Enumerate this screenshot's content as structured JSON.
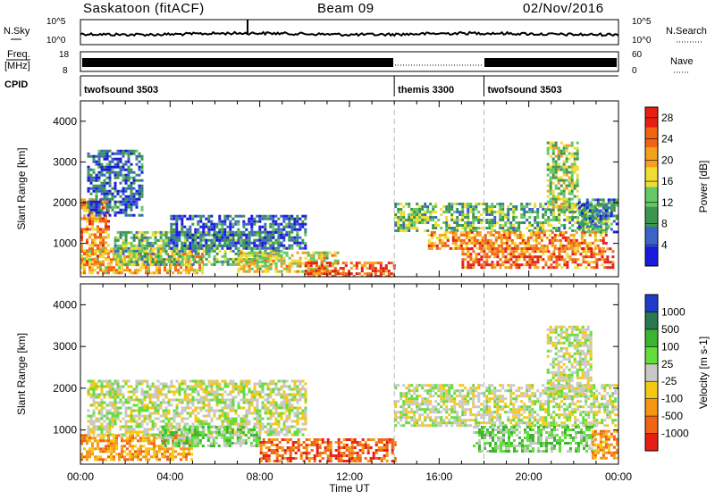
{
  "header": {
    "site": "Saskatoon (fitACF)",
    "beam": "Beam 09",
    "date": "02/Nov/2016"
  },
  "top_panels": {
    "nsky_label": "N.Sky",
    "nsearch_label": "N.Search",
    "nsky_ticks": [
      "10^5",
      "10^0"
    ],
    "nsearch_ticks": [
      "10^5",
      "10^0"
    ],
    "freq_label_1": "Freq.",
    "freq_label_2": "[MHz]",
    "freq_ticks": [
      "18",
      "8"
    ],
    "nave_label": "Nave",
    "nave_ticks": [
      "60",
      "0"
    ],
    "cpid_label": "CPID",
    "cpid_segments": [
      {
        "name": "twofsound 3503",
        "start": 0,
        "end": 14
      },
      {
        "name": "themis 3300",
        "start": 14,
        "end": 18
      },
      {
        "name": "twofsound 3503",
        "start": 18,
        "end": 24
      }
    ]
  },
  "chart_data": [
    {
      "type": "heatmap",
      "panel": "power",
      "ylabel": "Slant Range [km]",
      "xlabel": "Time UT",
      "ylim": [
        180,
        4500
      ],
      "xlim": [
        0,
        24
      ],
      "yticks": [
        1000,
        2000,
        3000,
        4000
      ],
      "xtick_labels": [
        "00:00",
        "04:00",
        "08:00",
        "12:00",
        "16:00",
        "20:00",
        "00:00"
      ],
      "colorbar_label": "Power [dB]",
      "colorbar_ticks": [
        4,
        8,
        12,
        16,
        20,
        24,
        28
      ],
      "colorbar_range": [
        0,
        30
      ],
      "colors": [
        "#1a1adc",
        "#3c64c8",
        "#3c9650",
        "#64c864",
        "#f0dc32",
        "#f5a01e",
        "#f06414",
        "#e61e14"
      ],
      "regions": [
        {
          "t0": 0.0,
          "t1": 1.2,
          "r0": 500,
          "r1": 2100,
          "v": 22
        },
        {
          "t0": 0.3,
          "t1": 2.8,
          "r0": 1700,
          "r1": 3300,
          "v": 6
        },
        {
          "t0": 0.0,
          "t1": 5.5,
          "r0": 300,
          "r1": 900,
          "v": 20
        },
        {
          "t0": 1.5,
          "t1": 9.0,
          "r0": 500,
          "r1": 1300,
          "v": 12
        },
        {
          "t0": 4.0,
          "t1": 10.0,
          "r0": 900,
          "r1": 1700,
          "v": 6
        },
        {
          "t0": 7.0,
          "t1": 11.5,
          "r0": 300,
          "r1": 800,
          "v": 17
        },
        {
          "t0": 10.0,
          "t1": 14.0,
          "r0": 200,
          "r1": 550,
          "v": 26
        },
        {
          "t0": 14.0,
          "t1": 23.5,
          "r0": 1300,
          "r1": 2000,
          "v": 12
        },
        {
          "t0": 15.5,
          "t1": 23.5,
          "r0": 900,
          "r1": 1300,
          "v": 22
        },
        {
          "t0": 17.0,
          "t1": 23.8,
          "r0": 400,
          "r1": 900,
          "v": 24
        },
        {
          "t0": 20.8,
          "t1": 22.2,
          "r0": 1800,
          "r1": 3500,
          "v": 14
        },
        {
          "t0": 22.2,
          "t1": 24.0,
          "r0": 1300,
          "r1": 2100,
          "v": 8
        }
      ]
    },
    {
      "type": "heatmap",
      "panel": "velocity",
      "ylabel": "Slant Range [km]",
      "xlabel": "Time UT",
      "ylim": [
        180,
        4500
      ],
      "xlim": [
        0,
        24
      ],
      "yticks": [
        1000,
        2000,
        3000,
        4000
      ],
      "xtick_labels": [
        "00:00",
        "04:00",
        "08:00",
        "12:00",
        "16:00",
        "20:00",
        "00:00"
      ],
      "colorbar_label": "Velocity [m s-1]",
      "colorbar_ticks": [
        "1000",
        "500",
        "100",
        "25",
        "-25",
        "-100",
        "-500",
        "-1000"
      ],
      "colors": [
        "#1e3cc8",
        "#287850",
        "#3cb432",
        "#64dc3c",
        "#c8c8c8",
        "#f5c814",
        "#f59614",
        "#f06414",
        "#e61e14"
      ],
      "regions": [
        {
          "t0": 0.0,
          "t1": 5.0,
          "r0": 300,
          "r1": 900,
          "c": 6
        },
        {
          "t0": 0.3,
          "t1": 10.0,
          "r0": 900,
          "r1": 2200,
          "c": 4
        },
        {
          "t0": 3.5,
          "t1": 8.0,
          "r0": 600,
          "r1": 1100,
          "c": 3
        },
        {
          "t0": 8.0,
          "t1": 14.0,
          "r0": 250,
          "r1": 800,
          "c": 7
        },
        {
          "t0": 14.0,
          "t1": 24.0,
          "r0": 1100,
          "r1": 2100,
          "c": 4
        },
        {
          "t0": 17.5,
          "t1": 23.0,
          "r0": 500,
          "r1": 1100,
          "c": 3
        },
        {
          "t0": 20.8,
          "t1": 22.8,
          "r0": 1800,
          "r1": 3500,
          "c": 4
        },
        {
          "t0": 22.8,
          "t1": 24.0,
          "r0": 300,
          "r1": 1000,
          "c": 6
        }
      ]
    }
  ]
}
